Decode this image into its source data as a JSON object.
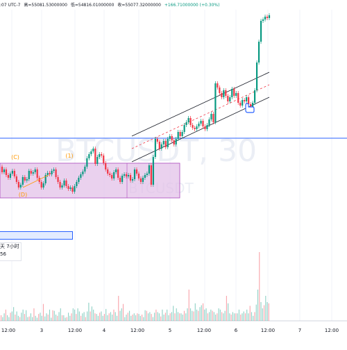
{
  "ohlc": {
    "time_text": ":07 UTC-7",
    "high_text": "高=55081.53000000",
    "low_text": "低=54816.01000000",
    "close_text": "收=55077.32000000",
    "change_text": "+166.71000000 (+0.30%)"
  },
  "watermark": {
    "symbol": "BTCUSDT, 30",
    "sub": "BTCUSDT"
  },
  "wave_labels": [
    "(C)",
    "(1)",
    "(D)"
  ],
  "tooltip": {
    "line1": "天 7小时",
    "line2": "56"
  },
  "colors": {
    "up": "#089981",
    "down": "#f23645",
    "box": "#e1bee7",
    "box_border": "#ab47bc",
    "hline": "#2962ff",
    "label": "#ff9800",
    "channel": "#131722"
  },
  "icons": [
    "pointer-hand-icon"
  ],
  "chart_data": {
    "type": "candlestick",
    "x_tick_labels": [
      "12:00",
      "3",
      "12:00",
      "4",
      "12:00",
      "5",
      "12:00",
      "6",
      "12:00",
      "7",
      "12:00"
    ],
    "price_series": [
      240,
      248,
      244,
      252,
      256,
      250,
      246,
      254,
      262,
      270,
      266,
      255,
      260,
      258,
      246,
      250,
      248,
      244,
      256,
      262,
      270,
      264,
      252,
      249,
      251,
      246,
      244,
      255,
      262,
      270,
      267,
      260,
      268,
      272,
      270,
      276,
      268,
      262,
      256,
      251,
      247,
      240,
      228,
      222,
      218,
      214,
      236,
      226,
      222,
      224,
      235,
      244,
      250,
      252,
      257,
      248,
      244,
      256,
      262,
      253,
      251,
      254,
      252,
      260,
      258,
      244,
      250,
      257,
      262,
      256,
      252,
      250,
      238,
      266,
      226,
      200,
      204,
      214,
      208,
      203,
      212,
      200,
      196,
      202,
      208,
      200,
      190,
      196,
      190,
      180,
      176,
      170,
      180,
      184,
      186,
      182,
      178,
      174,
      182,
      186,
      180,
      172,
      164,
      176,
      120,
      126,
      134,
      140,
      130,
      138,
      146,
      140,
      128,
      138,
      134,
      148,
      152,
      144,
      146,
      140,
      150,
      156,
      148,
      130,
      90,
      60,
      30,
      28,
      24,
      26,
      22
    ],
    "volume_series": [
      9,
      6,
      12,
      18,
      9,
      6,
      13,
      15,
      22,
      10,
      15,
      8,
      6,
      13,
      18,
      11,
      17,
      6,
      7,
      12,
      6,
      20,
      8,
      5,
      11,
      13,
      8,
      27,
      7,
      12,
      10,
      18,
      5,
      17,
      16,
      10,
      8,
      14,
      20,
      9,
      9,
      5,
      6,
      13,
      8,
      12,
      20,
      18,
      11,
      20,
      15,
      8,
      12,
      14,
      6,
      15,
      29,
      15,
      23,
      18,
      12,
      11,
      8,
      13,
      15,
      8,
      11,
      19,
      9,
      12,
      14,
      10,
      18,
      14,
      8,
      40,
      16,
      20,
      27,
      6,
      10,
      13,
      16,
      8,
      10,
      12,
      9,
      12,
      11,
      8,
      10,
      6,
      17,
      16,
      12,
      14,
      11,
      6,
      13,
      18,
      14,
      12,
      7,
      18,
      10,
      13,
      18,
      9,
      12,
      14,
      24,
      12,
      20,
      14,
      12,
      12,
      10,
      16,
      12,
      20,
      50,
      20,
      16,
      15,
      28,
      18,
      16,
      22,
      25,
      28,
      18,
      20,
      12,
      14,
      18,
      16,
      14,
      10,
      12,
      20,
      18,
      14,
      12,
      16,
      40,
      28,
      12,
      10,
      14,
      12,
      12,
      12,
      18,
      10,
      12,
      15,
      12,
      18,
      12,
      24,
      14,
      8,
      14,
      26,
      50,
      110,
      30,
      20,
      25,
      40,
      30,
      28
    ]
  }
}
